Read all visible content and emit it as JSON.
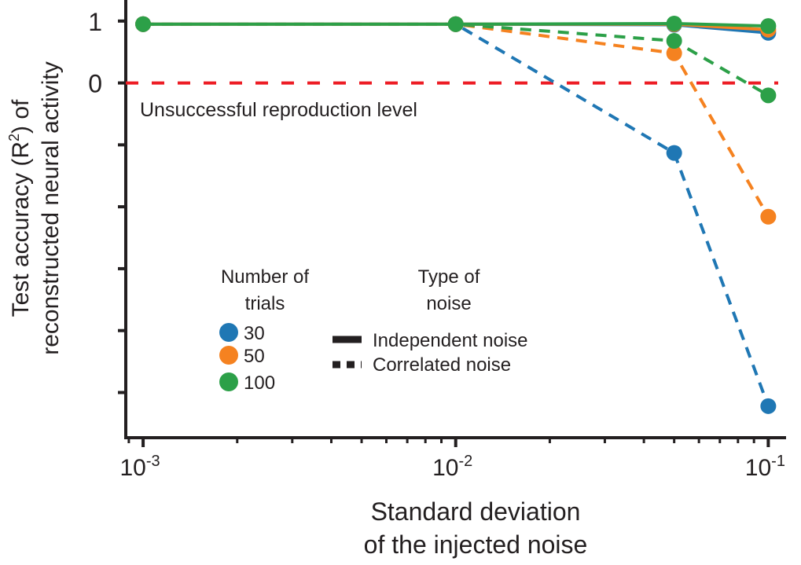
{
  "chart_data": {
    "type": "line",
    "xlabel": [
      "Standard deviation",
      "of the injected noise"
    ],
    "ylabel": [
      "Test accuracy (R",
      "2",
      ") of",
      "reconstructed neural activity"
    ],
    "x_scale": "log",
    "xlim": [
      0.00088,
      0.114
    ],
    "ylim": [
      -5.73,
      1.34
    ],
    "x_ticks": [
      {
        "value": 0.001,
        "base": "10",
        "exp": "-3"
      },
      {
        "value": 0.01,
        "base": "10",
        "exp": "-2"
      },
      {
        "value": 0.1,
        "base": "10",
        "exp": "-1"
      }
    ],
    "y_ticks": [
      {
        "value": 1,
        "label": "1"
      },
      {
        "value": 0,
        "label": "0"
      },
      {
        "value": -1,
        "label": ""
      },
      {
        "value": -2,
        "label": ""
      },
      {
        "value": -3,
        "label": ""
      },
      {
        "value": -4,
        "label": ""
      },
      {
        "value": -5,
        "label": ""
      }
    ],
    "grid": false,
    "x": [
      0.001,
      0.01,
      0.05,
      0.1
    ],
    "reference_line": {
      "y": 0,
      "label": "Unsuccessful reproduction level",
      "color": "#ed1c24",
      "style": "dashed"
    },
    "series": [
      {
        "trials": "30",
        "noise": "Independent noise",
        "color": "#1f77b4",
        "style": "solid",
        "values": [
          0.95,
          0.95,
          0.94,
          0.81
        ]
      },
      {
        "trials": "50",
        "noise": "Independent noise",
        "color": "#f58220",
        "style": "solid",
        "values": [
          0.95,
          0.95,
          0.95,
          0.86
        ]
      },
      {
        "trials": "100",
        "noise": "Independent noise",
        "color": "#2ca048",
        "style": "solid",
        "values": [
          0.95,
          0.95,
          0.96,
          0.92
        ]
      },
      {
        "trials": "30",
        "noise": "Correlated noise",
        "color": "#1f77b4",
        "style": "dashed",
        "values": [
          0.95,
          0.95,
          -1.13,
          -5.22
        ]
      },
      {
        "trials": "50",
        "noise": "Correlated noise",
        "color": "#f58220",
        "style": "dashed",
        "values": [
          0.95,
          0.95,
          0.48,
          -2.16
        ]
      },
      {
        "trials": "100",
        "noise": "Correlated noise",
        "color": "#2ca048",
        "style": "dashed",
        "values": [
          0.95,
          0.95,
          0.68,
          -0.2
        ]
      }
    ],
    "legend": {
      "placement": "bottom-left",
      "trials_title": [
        "Number of",
        "trials"
      ],
      "trials": [
        {
          "label": "30",
          "color": "#1f77b4"
        },
        {
          "label": "50",
          "color": "#f58220"
        },
        {
          "label": "100",
          "color": "#2ca048"
        }
      ],
      "noise_title": [
        "Type of",
        "noise"
      ],
      "noise": [
        {
          "label": "Independent noise",
          "style": "solid"
        },
        {
          "label": "Correlated noise",
          "style": "dashed"
        }
      ]
    }
  }
}
